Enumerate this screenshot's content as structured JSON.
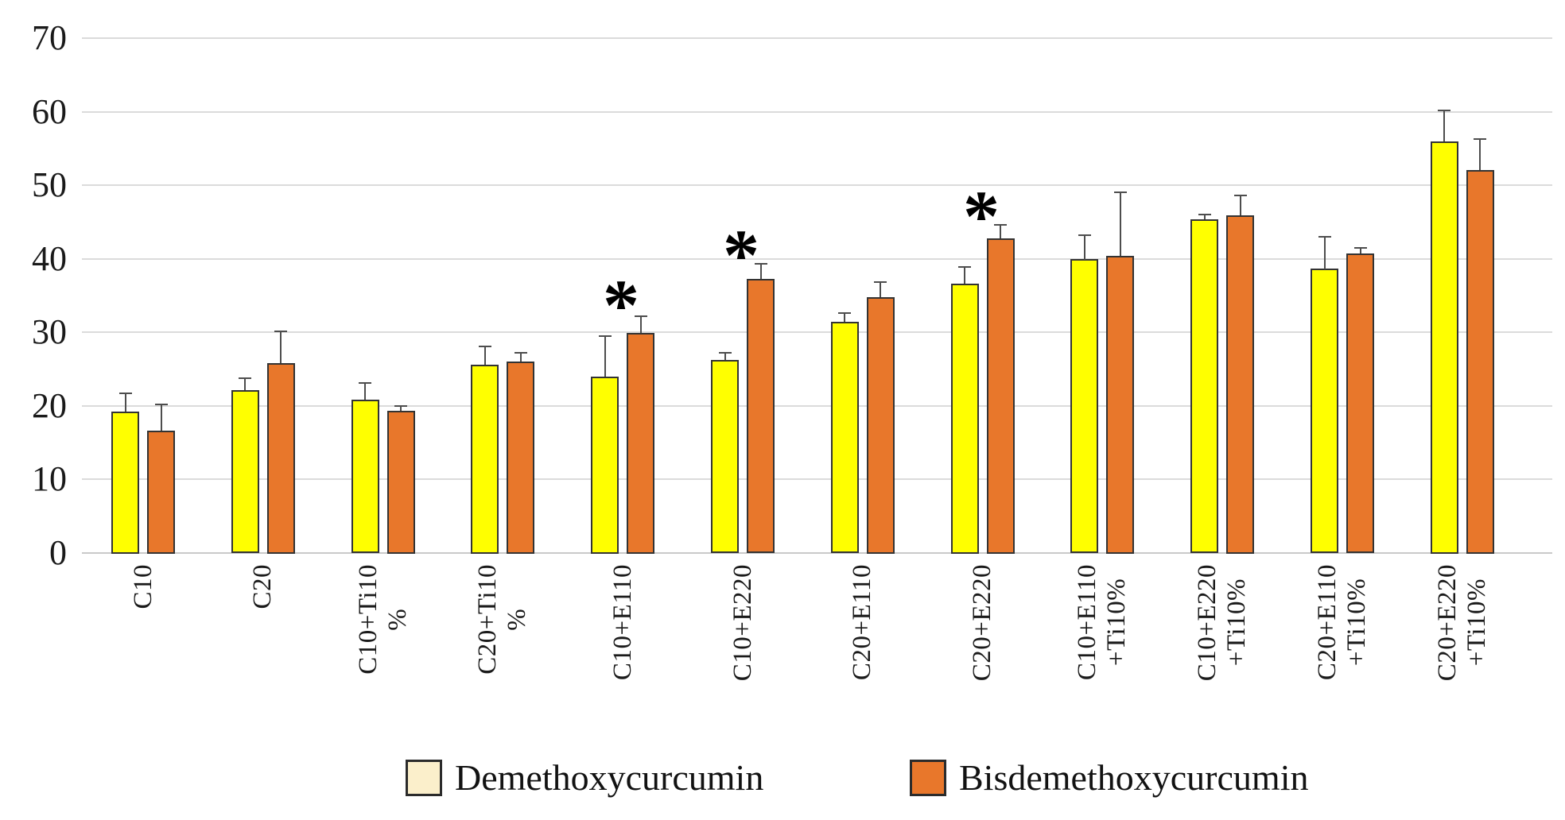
{
  "chart_data": {
    "type": "bar",
    "title": "",
    "xlabel": "",
    "ylabel": "",
    "ylim": [
      0,
      70
    ],
    "yticks": [
      0,
      10,
      20,
      30,
      40,
      50,
      60,
      70
    ],
    "grid": "horizontal",
    "legend_position": "bottom",
    "categories": [
      {
        "lines": [
          "C10"
        ]
      },
      {
        "lines": [
          "C20"
        ]
      },
      {
        "lines": [
          "C10+Ti10",
          "%"
        ]
      },
      {
        "lines": [
          "C20+Ti10",
          "%"
        ]
      },
      {
        "lines": [
          "C10+E110"
        ]
      },
      {
        "lines": [
          "C10+E220"
        ]
      },
      {
        "lines": [
          "C20+E110"
        ]
      },
      {
        "lines": [
          "C20+E220"
        ]
      },
      {
        "lines": [
          "C10+E110",
          "+Ti10%"
        ]
      },
      {
        "lines": [
          "C10+E220",
          "+Ti10%"
        ]
      },
      {
        "lines": [
          "C20+E110",
          "+Ti10%"
        ]
      },
      {
        "lines": [
          "C20+E220",
          "+Ti10%"
        ]
      }
    ],
    "series": [
      {
        "name": "Demethoxycurcumin",
        "bar_color": "#FFFF00",
        "values": [
          19.2,
          22.1,
          20.8,
          25.6,
          24.0,
          26.2,
          31.4,
          36.6,
          39.9,
          45.3,
          38.6,
          56.0
        ],
        "errors_plus": [
          2.5,
          1.6,
          2.3,
          2.5,
          5.5,
          1.0,
          1.2,
          2.3,
          3.3,
          0.7,
          4.4,
          4.2
        ]
      },
      {
        "name": "Bisdemethoxycurcumin",
        "bar_color": "#E8772B",
        "values": [
          16.6,
          25.8,
          19.3,
          26.0,
          29.9,
          37.2,
          34.8,
          42.8,
          40.4,
          45.9,
          40.7,
          52.1
        ],
        "errors_plus": [
          3.6,
          4.3,
          0.6,
          1.2,
          2.3,
          2.1,
          2.0,
          1.8,
          8.6,
          2.7,
          0.8,
          4.2
        ]
      }
    ],
    "significance_markers": [
      {
        "category": "C10+E110",
        "marker": "*",
        "y": 35.8
      },
      {
        "category": "C10+E220",
        "marker": "*",
        "y": 42.6
      },
      {
        "category": "C20+E220",
        "marker": "*",
        "y": 47.9
      }
    ]
  },
  "legend": {
    "items": [
      {
        "label": "Demethoxycurcumin",
        "swatch_color": "#FBEFCB"
      },
      {
        "label": "Bisdemethoxycurcumin",
        "swatch_color": "#E8772B"
      }
    ]
  },
  "colors": {
    "grid": "#DBDBDB",
    "axis_text": "#1A1A1A",
    "error_bar": "#4D4D4D",
    "bar_border": "#333333"
  }
}
